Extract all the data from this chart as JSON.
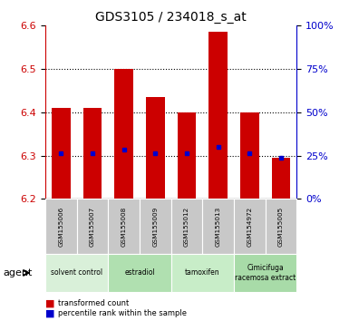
{
  "title": "GDS3105 / 234018_s_at",
  "samples": [
    "GSM155006",
    "GSM155007",
    "GSM155008",
    "GSM155009",
    "GSM155012",
    "GSM155013",
    "GSM154972",
    "GSM155005"
  ],
  "transformed_counts": [
    6.41,
    6.41,
    6.5,
    6.435,
    6.4,
    6.585,
    6.4,
    6.295
  ],
  "percentile_ranks": [
    6.305,
    6.305,
    6.315,
    6.305,
    6.305,
    6.32,
    6.305,
    6.295
  ],
  "bar_bottom": 6.2,
  "ylim": [
    6.2,
    6.6
  ],
  "yticks_left": [
    6.2,
    6.3,
    6.4,
    6.5,
    6.6
  ],
  "yticks_right": [
    0,
    25,
    50,
    75,
    100
  ],
  "bar_color": "#cc0000",
  "percentile_color": "#0000cc",
  "bg_color": "#ffffff",
  "plot_bg": "#ffffff",
  "agent_groups": [
    {
      "label": "solvent control",
      "start": 0,
      "end": 2,
      "color": "#d9f0d9"
    },
    {
      "label": "estradiol",
      "start": 2,
      "end": 4,
      "color": "#b0e0b0"
    },
    {
      "label": "tamoxifen",
      "start": 4,
      "end": 6,
      "color": "#c8edc8"
    },
    {
      "label": "Cimicifuga\nracemosa extract",
      "start": 6,
      "end": 8,
      "color": "#a8dba8"
    }
  ],
  "tick_label_bg": "#c8c8c8",
  "legend_red_label": "transformed count",
  "legend_blue_label": "percentile rank within the sample",
  "left_axis_color": "#cc0000",
  "right_axis_color": "#0000cc",
  "bar_width": 0.6
}
